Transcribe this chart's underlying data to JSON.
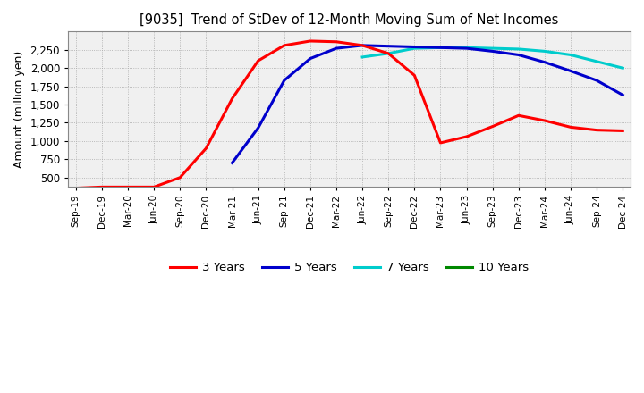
{
  "title": "[9035]  Trend of StDev of 12-Month Moving Sum of Net Incomes",
  "ylabel": "Amount (million yen)",
  "ylim": [
    380,
    2500
  ],
  "yticks": [
    500,
    750,
    1000,
    1250,
    1500,
    1750,
    2000,
    2250
  ],
  "background_color": "#f0f0f0",
  "grid_color": "#aaaaaa",
  "legend_labels": [
    "3 Years",
    "5 Years",
    "7 Years",
    "10 Years"
  ],
  "legend_colors": [
    "#ff0000",
    "#0000cc",
    "#00cccc",
    "#008800"
  ],
  "dates": [
    "Sep-19",
    "Dec-19",
    "Mar-20",
    "Jun-20",
    "Sep-20",
    "Dec-20",
    "Mar-21",
    "Jun-21",
    "Sep-21",
    "Dec-21",
    "Mar-22",
    "Jun-22",
    "Sep-22",
    "Dec-22",
    "Mar-23",
    "Jun-23",
    "Sep-23",
    "Dec-23",
    "Mar-24",
    "Jun-24",
    "Sep-24",
    "Dec-24"
  ],
  "series_3y": [
    355,
    370,
    370,
    370,
    500,
    900,
    1580,
    2100,
    2310,
    2370,
    2360,
    2310,
    2200,
    1900,
    975,
    1060,
    1200,
    1350,
    1280,
    1190,
    1150,
    1140
  ],
  "series_5y": [
    null,
    null,
    null,
    null,
    null,
    null,
    700,
    1180,
    1830,
    2130,
    2270,
    2310,
    2300,
    2290,
    2280,
    2270,
    2230,
    2180,
    2080,
    1960,
    1830,
    1630
  ],
  "series_7y": [
    null,
    null,
    null,
    null,
    null,
    null,
    null,
    null,
    null,
    null,
    null,
    2150,
    2200,
    2270,
    2280,
    2280,
    2270,
    2260,
    2230,
    2180,
    2090,
    2000
  ],
  "series_10y": [
    null,
    null,
    null,
    null,
    null,
    null,
    null,
    null,
    null,
    null,
    null,
    null,
    null,
    null,
    null,
    null,
    null,
    null,
    null,
    null,
    null,
    null
  ]
}
